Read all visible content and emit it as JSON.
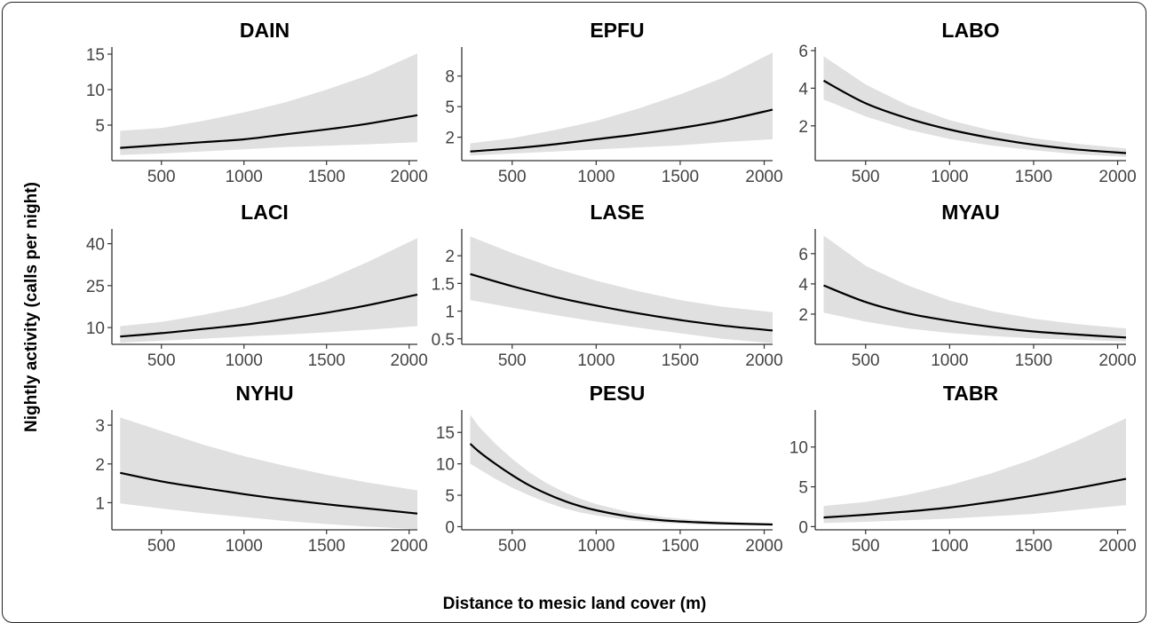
{
  "figure": {
    "ylabel": "Nightly activity (calls per night)",
    "xlabel": "Distance to mesic land cover (m)"
  },
  "colors": {
    "ribbon": "#e0e0e0",
    "line": "#000000",
    "axis": "#333333",
    "tick_text": "#444444"
  },
  "chart_data": [
    {
      "type": "line",
      "title": "DAIN",
      "x": [
        250,
        500,
        750,
        1000,
        1250,
        1500,
        1750,
        2050
      ],
      "y": [
        1.8,
        2.2,
        2.6,
        3.0,
        3.7,
        4.4,
        5.2,
        6.4
      ],
      "lower": [
        0.8,
        1.0,
        1.3,
        1.6,
        1.9,
        2.1,
        2.3,
        2.6
      ],
      "upper": [
        4.2,
        4.6,
        5.6,
        6.8,
        8.2,
        10.0,
        12.0,
        15.1
      ],
      "xlim": [
        200,
        2050
      ],
      "ylim": [
        0,
        15.5
      ],
      "xticks": [
        500,
        1000,
        1500,
        2000
      ],
      "yticks": [
        5,
        10,
        15
      ]
    },
    {
      "type": "line",
      "title": "EPFU",
      "x": [
        250,
        500,
        750,
        1000,
        1250,
        1500,
        1750,
        2050
      ],
      "y": [
        0.6,
        0.9,
        1.3,
        1.8,
        2.3,
        2.9,
        3.6,
        4.7
      ],
      "lower": [
        0.2,
        0.4,
        0.6,
        0.8,
        1.0,
        1.2,
        1.5,
        1.8
      ],
      "upper": [
        1.4,
        1.9,
        2.7,
        3.6,
        4.8,
        6.2,
        7.8,
        10.3
      ],
      "xlim": [
        200,
        2050
      ],
      "ylim": [
        -0.3,
        10.5
      ],
      "xticks": [
        500,
        1000,
        1500,
        2000
      ],
      "yticks": [
        2,
        5,
        8
      ]
    },
    {
      "type": "line",
      "title": "LABO",
      "x": [
        250,
        500,
        750,
        1000,
        1250,
        1500,
        1750,
        2050
      ],
      "y": [
        4.4,
        3.2,
        2.4,
        1.8,
        1.35,
        1.0,
        0.75,
        0.55
      ],
      "lower": [
        3.4,
        2.5,
        1.8,
        1.3,
        0.95,
        0.7,
        0.5,
        0.35
      ],
      "upper": [
        5.7,
        4.2,
        3.1,
        2.3,
        1.75,
        1.35,
        1.05,
        0.8
      ],
      "xlim": [
        200,
        2050
      ],
      "ylim": [
        0.15,
        6.0
      ],
      "xticks": [
        500,
        1000,
        1500,
        2000
      ],
      "yticks": [
        2,
        4,
        6
      ]
    },
    {
      "type": "line",
      "title": "LACI",
      "x": [
        250,
        500,
        750,
        1000,
        1250,
        1500,
        1750,
        2050
      ],
      "y": [
        6.8,
        8.0,
        9.5,
        11.0,
        13.0,
        15.3,
        18.0,
        21.8
      ],
      "lower": [
        4.6,
        5.3,
        6.0,
        6.8,
        7.5,
        8.3,
        9.2,
        10.5
      ],
      "upper": [
        10.5,
        12.0,
        14.5,
        17.5,
        21.5,
        27.0,
        33.5,
        42.0
      ],
      "xlim": [
        200,
        2050
      ],
      "ylim": [
        4.0,
        44.0
      ],
      "xticks": [
        500,
        1000,
        1500,
        2000
      ],
      "yticks": [
        10,
        25,
        40
      ]
    },
    {
      "type": "line",
      "title": "LASE",
      "x": [
        250,
        500,
        750,
        1000,
        1250,
        1500,
        1750,
        2050
      ],
      "y": [
        1.67,
        1.45,
        1.26,
        1.1,
        0.96,
        0.84,
        0.74,
        0.65
      ],
      "lower": [
        1.2,
        1.06,
        0.93,
        0.81,
        0.7,
        0.6,
        0.5,
        0.42
      ],
      "upper": [
        2.35,
        2.05,
        1.78,
        1.55,
        1.36,
        1.2,
        1.08,
        0.98
      ],
      "xlim": [
        200,
        2050
      ],
      "ylim": [
        0.4,
        2.42
      ],
      "xticks": [
        500,
        1000,
        1500,
        2000
      ],
      "yticks": [
        0.5,
        1,
        1.5,
        2
      ]
    },
    {
      "type": "line",
      "title": "MYAU",
      "x": [
        250,
        500,
        750,
        1000,
        1250,
        1500,
        1750,
        2050
      ],
      "y": [
        3.9,
        2.8,
        2.05,
        1.55,
        1.15,
        0.85,
        0.65,
        0.45
      ],
      "lower": [
        2.1,
        1.5,
        1.05,
        0.75,
        0.55,
        0.4,
        0.3,
        0.2
      ],
      "upper": [
        7.2,
        5.2,
        3.9,
        2.9,
        2.2,
        1.7,
        1.35,
        1.05
      ],
      "xlim": [
        200,
        2050
      ],
      "ylim": [
        0,
        7.4
      ],
      "xticks": [
        500,
        1000,
        1500,
        2000
      ],
      "yticks": [
        2,
        4,
        6
      ]
    },
    {
      "type": "line",
      "title": "NYHU",
      "x": [
        250,
        500,
        750,
        1000,
        1250,
        1500,
        1750,
        2050
      ],
      "y": [
        1.77,
        1.55,
        1.38,
        1.22,
        1.08,
        0.96,
        0.85,
        0.72
      ],
      "lower": [
        0.98,
        0.85,
        0.73,
        0.63,
        0.53,
        0.45,
        0.38,
        0.32
      ],
      "upper": [
        3.2,
        2.85,
        2.5,
        2.2,
        1.95,
        1.72,
        1.52,
        1.32
      ],
      "xlim": [
        200,
        2050
      ],
      "ylim": [
        0.3,
        3.3
      ],
      "xticks": [
        500,
        1000,
        1500,
        2000
      ],
      "yticks": [
        1,
        2,
        3
      ]
    },
    {
      "type": "line",
      "title": "PESU",
      "x": [
        250,
        300,
        400,
        500,
        600,
        700,
        800,
        900,
        1000,
        1200,
        1400,
        1600,
        1800,
        2050
      ],
      "y": [
        13.2,
        12.0,
        10.0,
        8.2,
        6.6,
        5.3,
        4.2,
        3.3,
        2.6,
        1.6,
        1.0,
        0.7,
        0.5,
        0.35
      ],
      "lower": [
        10.0,
        9.2,
        7.6,
        6.2,
        5.0,
        3.9,
        3.0,
        2.3,
        1.8,
        1.0,
        0.6,
        0.35,
        0.25,
        0.15
      ],
      "upper": [
        17.8,
        16.0,
        13.2,
        10.8,
        8.7,
        7.0,
        5.6,
        4.5,
        3.6,
        2.3,
        1.5,
        1.05,
        0.75,
        0.55
      ],
      "xlim": [
        200,
        2050
      ],
      "ylim": [
        -0.5,
        18.0
      ],
      "xticks": [
        500,
        1000,
        1500,
        2000
      ],
      "yticks": [
        0,
        5,
        10,
        15
      ]
    },
    {
      "type": "line",
      "title": "TABR",
      "x": [
        250,
        500,
        750,
        1000,
        1250,
        1500,
        1750,
        2050
      ],
      "y": [
        1.15,
        1.5,
        1.9,
        2.4,
        3.1,
        3.9,
        4.8,
        6.0
      ],
      "lower": [
        0.45,
        0.6,
        0.8,
        1.0,
        1.3,
        1.6,
        2.1,
        2.7
      ],
      "upper": [
        2.6,
        3.1,
        4.0,
        5.2,
        6.7,
        8.5,
        10.7,
        13.6
      ],
      "xlim": [
        200,
        2050
      ],
      "ylim": [
        -0.4,
        14.2
      ],
      "xticks": [
        500,
        1000,
        1500,
        2000
      ],
      "yticks": [
        0,
        5,
        10
      ]
    }
  ]
}
